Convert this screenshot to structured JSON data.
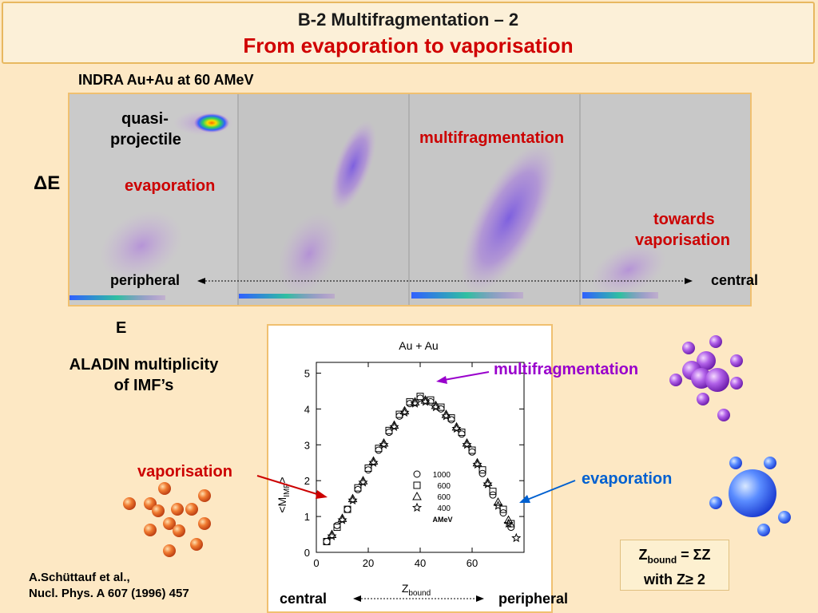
{
  "title": {
    "line1": "B-2 Multifragmentation – 2",
    "line2": "From evaporation to vaporisation"
  },
  "indra": {
    "heading": "INDRA Au+Au at 60 AMeV",
    "y_label": "ΔE",
    "x_label": "E",
    "labels": {
      "quasi1": "quasi-",
      "quasi2": "projectile",
      "evaporation": "evaporation",
      "multifragmentation": "multifragmentation",
      "towards1": "towards",
      "towards2": "vaporisation",
      "peripheral": "peripheral",
      "central": "central"
    }
  },
  "aladin": {
    "line1": "ALADIN multiplicity",
    "line2": "of IMF’s"
  },
  "annotations": {
    "multifragmentation": "multifragmentation",
    "vaporisation": "vaporisation",
    "evaporation": "evaporation",
    "bottom_central": "central",
    "bottom_peripheral": "peripheral"
  },
  "zbound_box": {
    "line1_a": "Z",
    "line1_sub": "bound",
    "line1_b": " = ΣZ",
    "line2": "with Z≥ 2"
  },
  "reference": {
    "line1": "A.Schüttauf et al.,",
    "line2": "Nucl. Phys. A 607 (1996) 457"
  },
  "colors": {
    "title_red": "#d00000",
    "label_red": "#cc0000",
    "label_purple": "#9900cc",
    "label_blue": "#0060d0",
    "panel_border": "#f0c070",
    "background": "#fde8c4"
  },
  "chart_data": {
    "type": "scatter",
    "title": "Au + Au",
    "xlabel": "Z",
    "xlabel_sub": "bound",
    "ylabel": "<M",
    "ylabel_sub": "IMF",
    "ylabel_end": ">",
    "xlim": [
      0,
      80
    ],
    "ylim": [
      0,
      5.3
    ],
    "xticks": [
      0,
      20,
      40,
      60
    ],
    "yticks": [
      0,
      1,
      2,
      3,
      4,
      5
    ],
    "legend_unit": "AMeV",
    "series": [
      {
        "name": "1000",
        "marker": "circle",
        "x": [
          4,
          8,
          12,
          16,
          20,
          24,
          28,
          32,
          36,
          40,
          44,
          48,
          52,
          56,
          60,
          64,
          68,
          72,
          75
        ],
        "y": [
          0.3,
          0.75,
          1.2,
          1.75,
          2.3,
          2.85,
          3.35,
          3.8,
          4.15,
          4.3,
          4.2,
          4.0,
          3.7,
          3.3,
          2.8,
          2.2,
          1.6,
          1.1,
          0.7
        ]
      },
      {
        "name": "600",
        "marker": "square",
        "x": [
          4,
          8,
          12,
          16,
          20,
          24,
          28,
          32,
          36,
          40,
          44,
          48,
          52,
          56,
          60,
          64,
          68,
          72,
          75
        ],
        "y": [
          0.3,
          0.7,
          1.2,
          1.8,
          2.35,
          2.9,
          3.4,
          3.85,
          4.2,
          4.35,
          4.25,
          4.05,
          3.75,
          3.35,
          2.85,
          2.3,
          1.7,
          1.2,
          0.8
        ]
      },
      {
        "name": "600",
        "marker": "triangle",
        "x": [
          6,
          10,
          14,
          18,
          22,
          26,
          30,
          34,
          38,
          42,
          46,
          50,
          54,
          58,
          62,
          66,
          70,
          74
        ],
        "y": [
          0.5,
          0.95,
          1.5,
          2.0,
          2.55,
          3.05,
          3.55,
          3.95,
          4.2,
          4.25,
          4.1,
          3.85,
          3.5,
          3.05,
          2.5,
          1.95,
          1.4,
          0.9
        ]
      },
      {
        "name": "400",
        "marker": "star",
        "x": [
          6,
          10,
          14,
          18,
          22,
          26,
          30,
          34,
          38,
          42,
          46,
          50,
          54,
          58,
          62,
          66,
          70,
          74,
          77
        ],
        "y": [
          0.45,
          0.9,
          1.45,
          1.95,
          2.5,
          3.0,
          3.5,
          3.9,
          4.15,
          4.2,
          4.05,
          3.8,
          3.45,
          3.0,
          2.45,
          1.9,
          1.3,
          0.8,
          0.4
        ]
      }
    ]
  }
}
